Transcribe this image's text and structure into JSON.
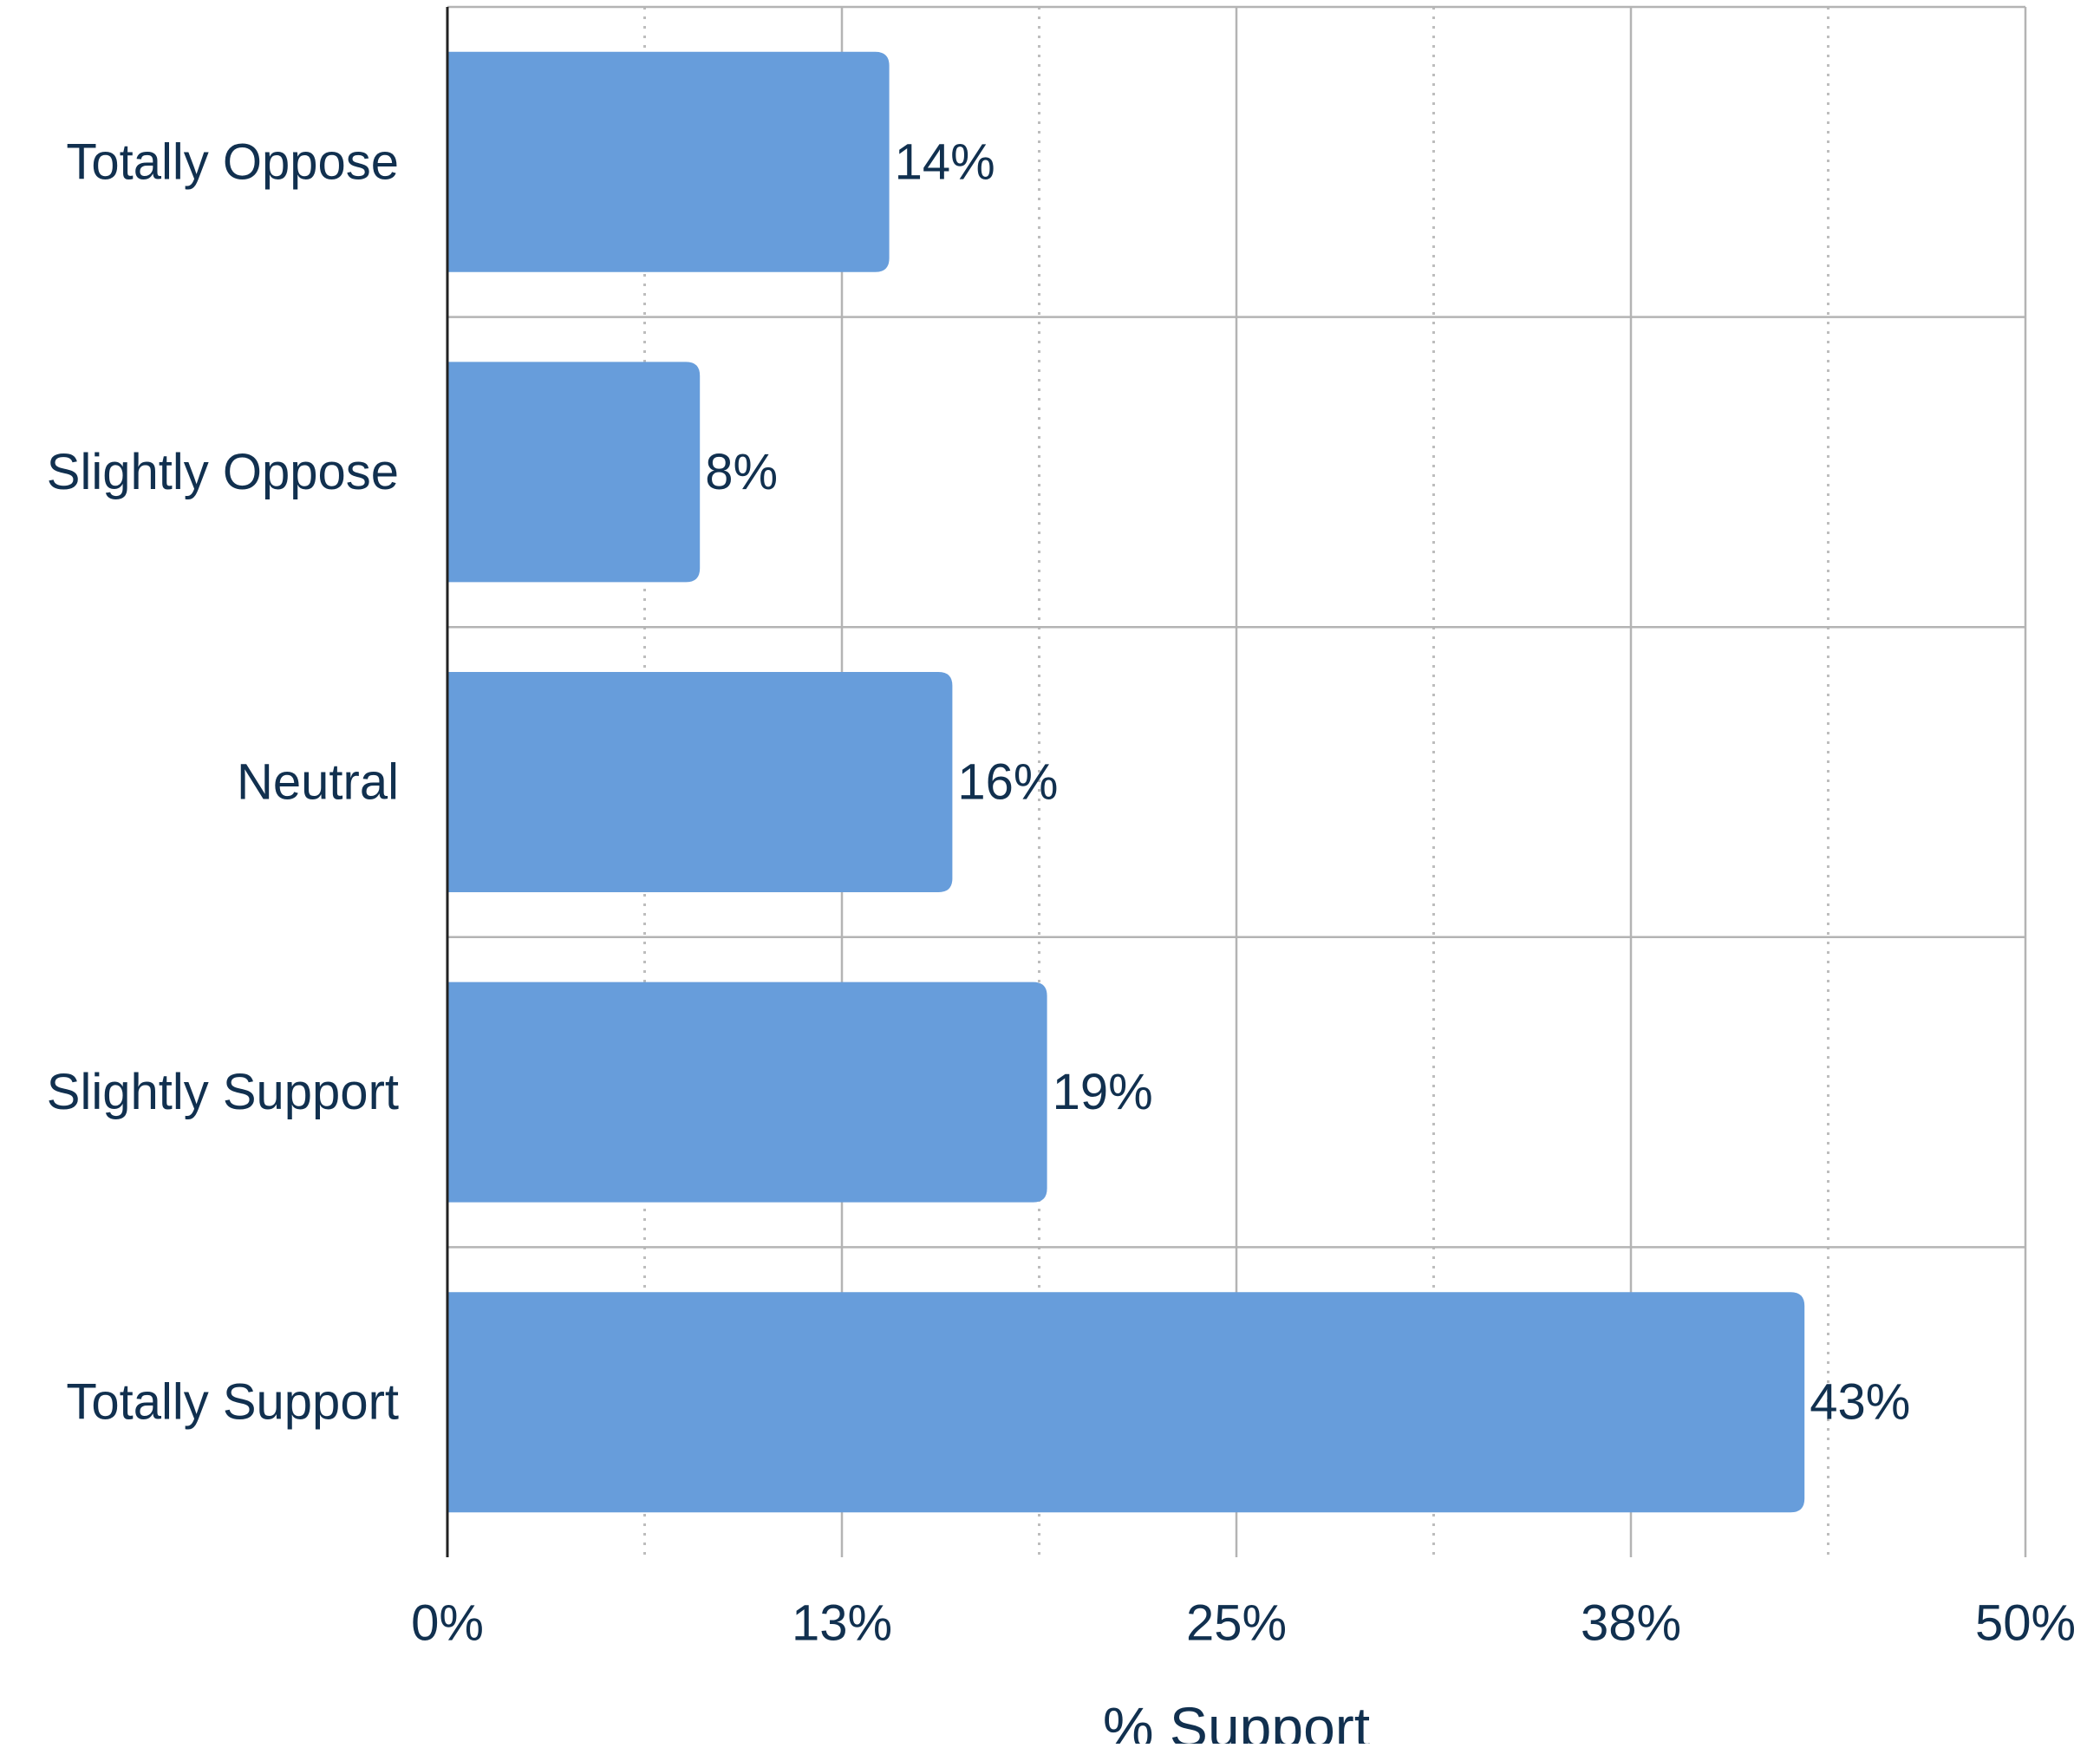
{
  "chart_data": {
    "type": "bar",
    "orientation": "horizontal",
    "categories": [
      "Totally Oppose",
      "Slightly Oppose",
      "Neutral",
      "Slightly Support",
      "Totally Support"
    ],
    "values": [
      14,
      8,
      16,
      19,
      43
    ],
    "value_labels": [
      "14%",
      "8%",
      "16%",
      "19%",
      "43%"
    ],
    "xlabel": "% Support",
    "ylabel": "",
    "title": "",
    "xlim": [
      0,
      50
    ],
    "x_ticks": [
      0,
      12.5,
      25,
      37.5,
      50
    ],
    "x_tick_labels": [
      "0%",
      "13%",
      "25%",
      "38%",
      "50%"
    ],
    "minor_x_ticks": [
      6.25,
      18.75,
      31.25,
      43.75
    ],
    "grid": true,
    "colors": {
      "bar": "#679ddb",
      "text": "#11304f",
      "grid_major": "#b4b4b4",
      "grid_minor": "#bdbdbd",
      "axis": "#222222"
    }
  }
}
